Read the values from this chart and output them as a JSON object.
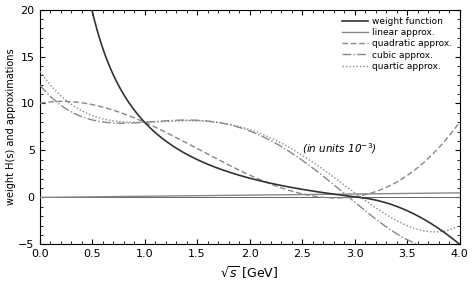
{
  "xlim": [
    0,
    4
  ],
  "ylim": [
    -5,
    20
  ],
  "xlabel": "$\\sqrt{s}$ [GeV]",
  "ylabel": "weight H(s) and approximations",
  "yticks": [
    -5,
    0,
    5,
    10,
    15,
    20
  ],
  "xticks": [
    0,
    0.5,
    1.0,
    1.5,
    2.0,
    2.5,
    3.0,
    3.5,
    4.0
  ],
  "annotation": "(in units 10$^{-3}$)",
  "legend_entries": [
    {
      "label": "weight function"
    },
    {
      "label": "linear approx."
    },
    {
      "label": "quadratic approx."
    },
    {
      "label": "cubic approx."
    },
    {
      "label": "quartic approx."
    }
  ],
  "bg_color": "#ffffff",
  "weight_color": "#333333",
  "approx_color": "#888888"
}
